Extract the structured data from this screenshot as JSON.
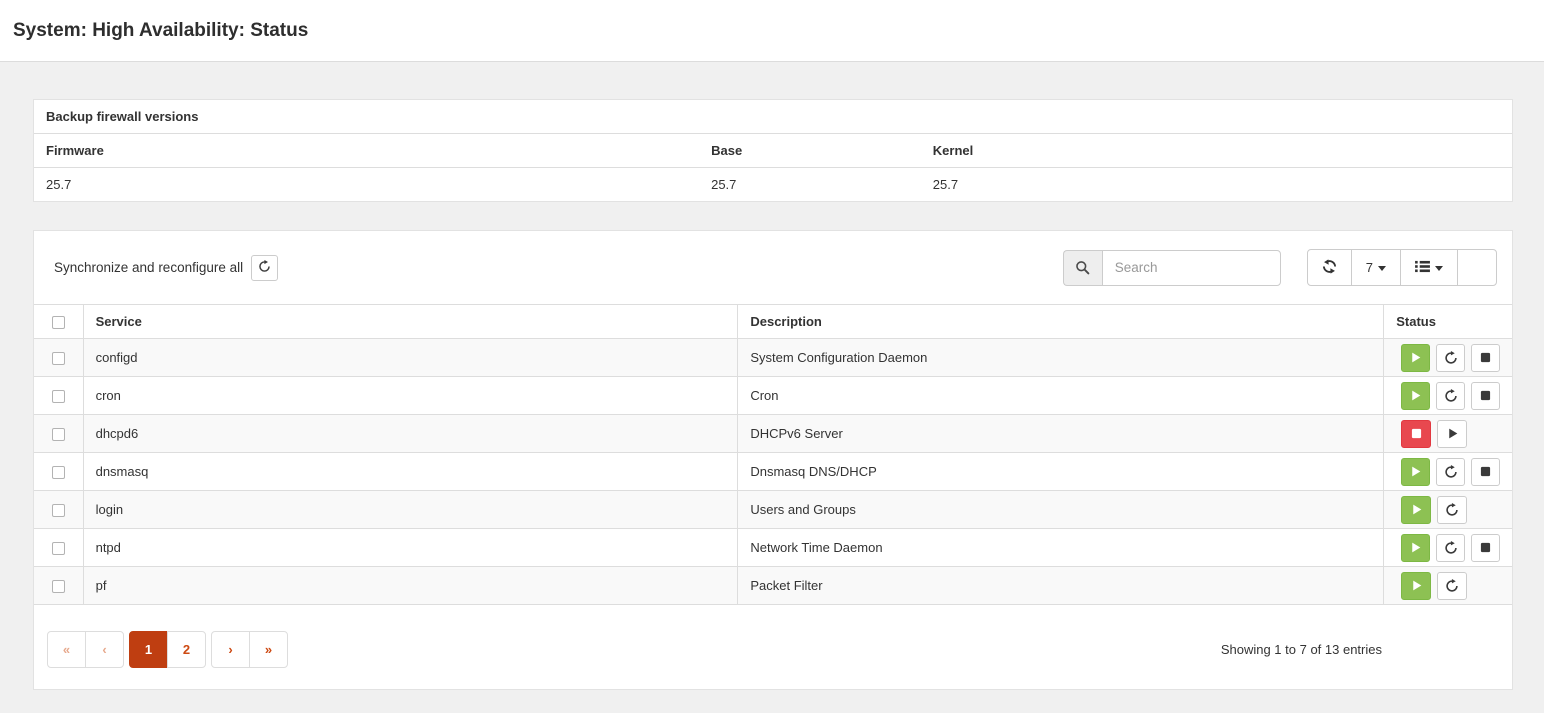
{
  "page": {
    "title": "System: High Availability: Status"
  },
  "colors": {
    "running_green": "#8dc153",
    "stopped_red": "#e8484f",
    "active_page_bg": "#bf3e11",
    "link_orange": "#cd4a13",
    "page_background": "#f0f0f0"
  },
  "versions_panel": {
    "title": "Backup firewall versions",
    "columns": [
      "Firmware",
      "Base",
      "Kernel"
    ],
    "values": [
      "25.7",
      "25.7",
      "25.7"
    ]
  },
  "services_panel": {
    "sync_label": "Synchronize and reconfigure all",
    "search": {
      "placeholder": "Search",
      "icon": "magnifier"
    },
    "page_size": "7",
    "toolbar_icons": [
      "refresh-icon",
      "caret-down-icon",
      "list-icon"
    ],
    "table": {
      "columns": [
        "Service",
        "Description",
        "Status"
      ],
      "rows": [
        {
          "service": "configd",
          "description": "System Configuration Daemon",
          "status": "running",
          "actions": [
            "running",
            "restart",
            "stop"
          ]
        },
        {
          "service": "cron",
          "description": "Cron",
          "status": "running",
          "actions": [
            "running",
            "restart",
            "stop"
          ]
        },
        {
          "service": "dhcpd6",
          "description": "DHCPv6 Server",
          "status": "stopped",
          "actions": [
            "stopped",
            "start"
          ]
        },
        {
          "service": "dnsmasq",
          "description": "Dnsmasq DNS/DHCP",
          "status": "running",
          "actions": [
            "running",
            "restart",
            "stop"
          ]
        },
        {
          "service": "login",
          "description": "Users and Groups",
          "status": "running",
          "actions": [
            "running",
            "restart"
          ]
        },
        {
          "service": "ntpd",
          "description": "Network Time Daemon",
          "status": "running",
          "actions": [
            "running",
            "restart",
            "stop"
          ]
        },
        {
          "service": "pf",
          "description": "Packet Filter",
          "status": "running",
          "actions": [
            "running",
            "restart"
          ]
        }
      ]
    },
    "pagination": {
      "first": "«",
      "prev": "‹",
      "pages": [
        "1",
        "2"
      ],
      "active": "1",
      "next": "›",
      "last": "»"
    },
    "info": "Showing 1 to 7 of 13 entries"
  }
}
